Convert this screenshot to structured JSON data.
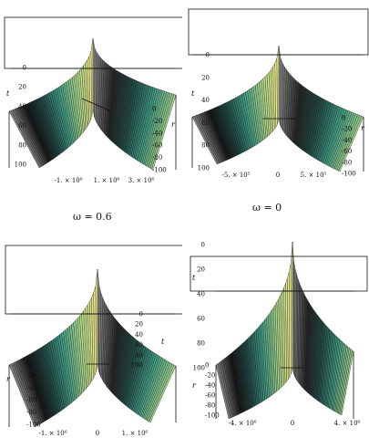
{
  "chart_data": [
    {
      "type": "surface",
      "caption": "ω = 0.6",
      "t_axis": {
        "label": "t",
        "ticks": [
          "0",
          "20",
          "40",
          "60",
          "80",
          "100"
        ],
        "range": [
          0,
          100
        ]
      },
      "r_axis": {
        "label": "r",
        "ticks": [
          "0",
          "-20",
          "-40",
          "-60",
          "-80",
          "-100"
        ],
        "range": [
          0,
          -100
        ]
      },
      "x_axis": {
        "ticks": [
          "-1. × 10⁶",
          "1. × 10⁶",
          "3. × 10⁶"
        ]
      },
      "colormap": [
        "#f4ef8a",
        "#a9d98c",
        "#3f9f87",
        "#1d4a46",
        "#111111",
        "#8e8e8e"
      ]
    },
    {
      "type": "surface",
      "caption": "ω = 0",
      "t_axis": {
        "label": "t",
        "ticks": [
          "0",
          "20",
          "40",
          "60",
          "80",
          "100"
        ],
        "range": [
          0,
          100
        ]
      },
      "r_axis": {
        "label": "r",
        "ticks": [
          "0",
          "-20",
          "-40",
          "-60",
          "-80",
          "-100"
        ],
        "range": [
          0,
          -100
        ]
      },
      "x_axis": {
        "ticks": [
          "-5. × 10⁵",
          "0",
          "5. × 10⁵"
        ]
      },
      "colormap": [
        "#f4ef8a",
        "#a9d98c",
        "#3f9f87",
        "#1d4a46",
        "#111111",
        "#8e8e8e"
      ]
    },
    {
      "type": "surface",
      "caption": "",
      "t_axis": {
        "label": "t",
        "ticks": [
          "0",
          "20",
          "40",
          "60",
          "80",
          "100"
        ],
        "range": [
          0,
          100
        ]
      },
      "r_axis": {
        "label": "r",
        "ticks": [
          "0",
          "-20",
          "-40",
          "-60",
          "-80",
          "-100"
        ],
        "range": [
          0,
          -100
        ]
      },
      "x_axis": {
        "ticks": [
          "-1. × 10⁶",
          "0",
          "1. × 10⁶"
        ]
      },
      "colormap": [
        "#f4ef8a",
        "#a9d98c",
        "#3f9f87",
        "#1d4a46",
        "#111111",
        "#8e8e8e"
      ]
    },
    {
      "type": "surface",
      "caption": "",
      "t_axis": {
        "label": "t",
        "ticks": [
          "0",
          "20",
          "40",
          "60",
          "80",
          "100"
        ],
        "range": [
          0,
          100
        ]
      },
      "r_axis": {
        "label": "r",
        "ticks": [
          "0",
          "-20",
          "-40",
          "-60",
          "-80",
          "-100"
        ],
        "range": [
          0,
          -100
        ]
      },
      "x_axis": {
        "ticks": [
          "-4. × 10⁶",
          "0",
          "4. × 10⁶"
        ]
      },
      "colormap": [
        "#f4ef8a",
        "#a9d98c",
        "#3f9f87",
        "#1d4a46",
        "#111111",
        "#8e8e8e"
      ]
    }
  ]
}
